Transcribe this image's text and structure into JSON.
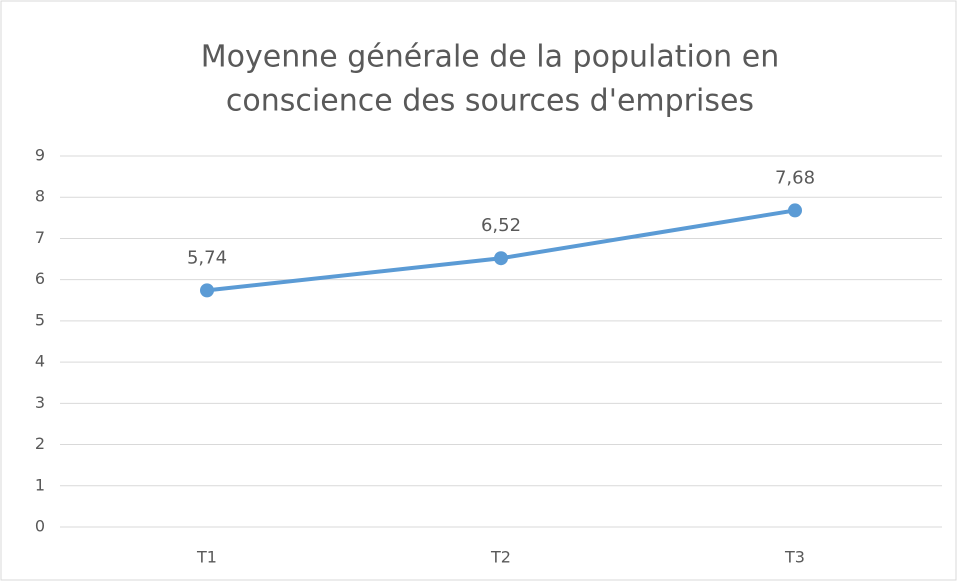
{
  "chart_data": {
    "type": "line",
    "title": [
      "Moyenne générale de la population en",
      "conscience des sources d'emprises"
    ],
    "categories": [
      "T1",
      "T2",
      "T3"
    ],
    "values": [
      5.74,
      6.52,
      7.68
    ],
    "value_labels": [
      "5,74",
      "6,52",
      "7,68"
    ],
    "color": "#5b9bd5",
    "ylim": [
      0,
      9
    ],
    "yticks": [
      0,
      1,
      2,
      3,
      4,
      5,
      6,
      7,
      8,
      9
    ],
    "grid": true
  }
}
